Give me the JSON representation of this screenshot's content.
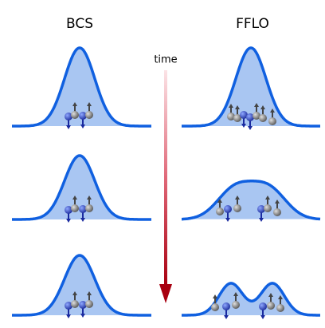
{
  "columns": [
    {
      "title": "BCS"
    },
    {
      "title": "FFLO"
    }
  ],
  "time_label": "time"
}
